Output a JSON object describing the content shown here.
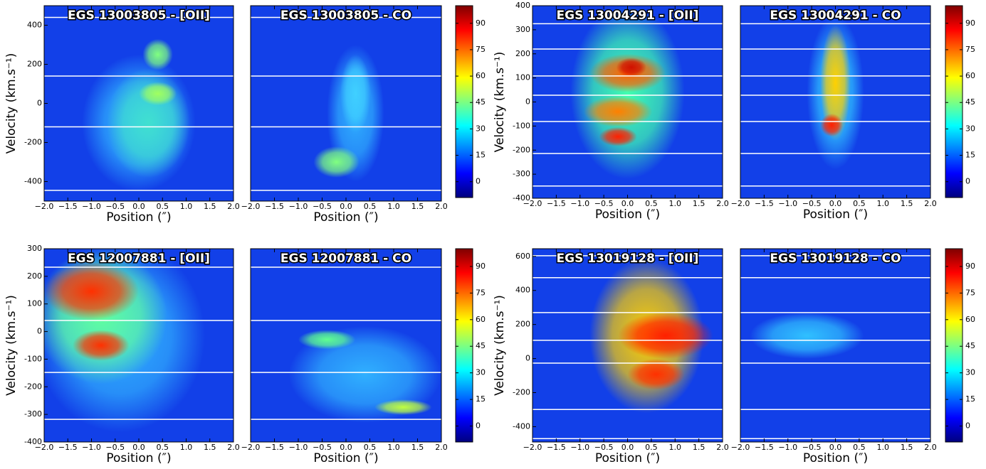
{
  "chart_data": [
    {
      "type": "heatmap",
      "title": "EGS 13003805 - [OII]",
      "xlabel": "Position (″)",
      "ylabel": "Velocity (km.s⁻¹)",
      "xlim": [
        -2,
        2
      ],
      "xticks": [
        {
          "value": -2,
          "label": "−2.0"
        },
        {
          "value": -1.5,
          "label": "−1.5"
        },
        {
          "value": -1,
          "label": "−1.0"
        },
        {
          "value": -0.5,
          "label": "−0.5"
        },
        {
          "value": 0,
          "label": "0.0"
        },
        {
          "value": 0.5,
          "label": "0.5"
        },
        {
          "value": 1,
          "label": "1.0"
        },
        {
          "value": 1.5,
          "label": "1.5"
        },
        {
          "value": 2,
          "label": "2.0"
        }
      ],
      "ylim": [
        -500,
        500
      ],
      "yticks": [
        -400,
        -200,
        0,
        200,
        400
      ],
      "hlines": [
        440,
        140,
        -120,
        -445
      ]
    },
    {
      "type": "heatmap",
      "title": "EGS 13003805 - CO",
      "xlabel": "Position (″)",
      "xlim": [
        -2,
        2
      ],
      "xticks": [
        {
          "value": -2,
          "label": "−2.0"
        },
        {
          "value": -1.5,
          "label": "−1.5"
        },
        {
          "value": -1,
          "label": "−1.0"
        },
        {
          "value": -0.5,
          "label": "−0.5"
        },
        {
          "value": 0,
          "label": "0.0"
        },
        {
          "value": 0.5,
          "label": "0.5"
        },
        {
          "value": 1,
          "label": "1.0"
        },
        {
          "value": 1.5,
          "label": "1.5"
        },
        {
          "value": 2,
          "label": "2.0"
        }
      ],
      "ylim": [
        -500,
        500
      ],
      "hlines": [
        440,
        140,
        -120,
        -445
      ]
    },
    {
      "type": "heatmap",
      "title": "EGS 13004291 - [OII]",
      "xlabel": "Position (″)",
      "ylabel": "Velocity (km.s⁻¹)",
      "xlim": [
        -2,
        2
      ],
      "xticks": [
        {
          "value": -2,
          "label": "−2.0"
        },
        {
          "value": -1.5,
          "label": "−1.5"
        },
        {
          "value": -1,
          "label": "−1.0"
        },
        {
          "value": -0.5,
          "label": "−0.5"
        },
        {
          "value": 0,
          "label": "0.0"
        },
        {
          "value": 0.5,
          "label": "0.5"
        },
        {
          "value": 1,
          "label": "1.0"
        },
        {
          "value": 1.5,
          "label": "1.5"
        },
        {
          "value": 2,
          "label": "2.0"
        }
      ],
      "ylim": [
        -400,
        400
      ],
      "yticks": [
        -400,
        -300,
        -200,
        -100,
        0,
        100,
        200,
        300,
        400
      ],
      "hlines": [
        325,
        220,
        108,
        28,
        -81,
        -214,
        -349
      ]
    },
    {
      "type": "heatmap",
      "title": "EGS 13004291 - CO",
      "xlabel": "Position (″)",
      "xlim": [
        -2,
        2
      ],
      "xticks": [
        {
          "value": -2,
          "label": "−2.0"
        },
        {
          "value": -1.5,
          "label": "−1.5"
        },
        {
          "value": -1,
          "label": "−1.0"
        },
        {
          "value": -0.5,
          "label": "−0.5"
        },
        {
          "value": 0,
          "label": "0.0"
        },
        {
          "value": 0.5,
          "label": "0.5"
        },
        {
          "value": 1,
          "label": "1.0"
        },
        {
          "value": 1.5,
          "label": "1.5"
        },
        {
          "value": 2,
          "label": "2.0"
        }
      ],
      "ylim": [
        -400,
        400
      ],
      "hlines": [
        325,
        220,
        108,
        28,
        -81,
        -214,
        -349
      ]
    },
    {
      "type": "heatmap",
      "title": "EGS 12007881 - [OII]",
      "xlabel": "Position (″)",
      "ylabel": "Velocity (km.s⁻¹)",
      "xlim": [
        -2,
        2
      ],
      "xticks": [
        {
          "value": -2,
          "label": "−2.0"
        },
        {
          "value": -1.5,
          "label": "−1.5"
        },
        {
          "value": -1,
          "label": "−1.0"
        },
        {
          "value": -0.5,
          "label": "−0.5"
        },
        {
          "value": 0,
          "label": "0.0"
        },
        {
          "value": 0.5,
          "label": "0.5"
        },
        {
          "value": 1,
          "label": "1.0"
        },
        {
          "value": 1.5,
          "label": "1.5"
        },
        {
          "value": 2,
          "label": "2.0"
        }
      ],
      "ylim": [
        -400,
        300
      ],
      "yticks": [
        -400,
        -300,
        -200,
        -100,
        0,
        100,
        200,
        300
      ],
      "hlines": [
        233,
        40,
        -148,
        -318
      ]
    },
    {
      "type": "heatmap",
      "title": "EGS 12007881 - CO",
      "xlabel": "Position (″)",
      "xlim": [
        -2,
        2
      ],
      "xticks": [
        {
          "value": -2,
          "label": "−2.0"
        },
        {
          "value": -1.5,
          "label": "−1.5"
        },
        {
          "value": -1,
          "label": "−1.0"
        },
        {
          "value": -0.5,
          "label": "−0.5"
        },
        {
          "value": 0,
          "label": "0.0"
        },
        {
          "value": 0.5,
          "label": "0.5"
        },
        {
          "value": 1,
          "label": "1.0"
        },
        {
          "value": 1.5,
          "label": "1.5"
        },
        {
          "value": 2,
          "label": "2.0"
        }
      ],
      "ylim": [
        -400,
        300
      ],
      "hlines": [
        233,
        40,
        -148,
        -318
      ]
    },
    {
      "type": "heatmap",
      "title": "EGS 13019128 - [OII]",
      "xlabel": "Position (″)",
      "ylabel": "Velocity (km.s⁻¹)",
      "xlim": [
        -2,
        2
      ],
      "xticks": [
        {
          "value": -2,
          "label": "−2.0"
        },
        {
          "value": -1.5,
          "label": "−1.5"
        },
        {
          "value": -1,
          "label": "−1.0"
        },
        {
          "value": -0.5,
          "label": "−0.5"
        },
        {
          "value": 0,
          "label": "0.0"
        },
        {
          "value": 0.5,
          "label": "0.5"
        },
        {
          "value": 1,
          "label": "1.0"
        },
        {
          "value": 1.5,
          "label": "1.5"
        },
        {
          "value": 2,
          "label": "2.0"
        }
      ],
      "ylim": [
        -490,
        645
      ],
      "yticks": [
        -400,
        -200,
        0,
        200,
        400,
        600
      ],
      "hlines": [
        604,
        475,
        270,
        107,
        -27,
        -299,
        -470
      ]
    },
    {
      "type": "heatmap",
      "title": "EGS 13019128 - CO",
      "xlabel": "Position (″)",
      "xlim": [
        -2,
        2
      ],
      "xticks": [
        {
          "value": -2,
          "label": "−2.0"
        },
        {
          "value": -1.5,
          "label": "−1.5"
        },
        {
          "value": -1,
          "label": "−1.0"
        },
        {
          "value": -0.5,
          "label": "−0.5"
        },
        {
          "value": 0,
          "label": "0.0"
        },
        {
          "value": 0.5,
          "label": "0.5"
        },
        {
          "value": 1,
          "label": "1.0"
        },
        {
          "value": 1.5,
          "label": "1.5"
        },
        {
          "value": 2,
          "label": "2.0"
        }
      ],
      "ylim": [
        -490,
        645
      ],
      "hlines": [
        604,
        475,
        270,
        107,
        -27,
        -299,
        -470
      ]
    },
    {
      "type": "colorbar",
      "clim": [
        -9,
        100
      ],
      "ticks": [
        0,
        15,
        30,
        45,
        60,
        75,
        90
      ]
    },
    {
      "type": "colorbar",
      "clim": [
        -9,
        100
      ],
      "ticks": [
        0,
        15,
        30,
        45,
        60,
        75,
        90
      ]
    },
    {
      "type": "colorbar",
      "clim": [
        -9,
        100
      ],
      "ticks": [
        0,
        15,
        30,
        45,
        60,
        75,
        90
      ]
    },
    {
      "type": "colorbar",
      "clim": [
        -9,
        100
      ],
      "ticks": [
        0,
        15,
        30,
        45,
        60,
        75,
        90
      ]
    }
  ]
}
